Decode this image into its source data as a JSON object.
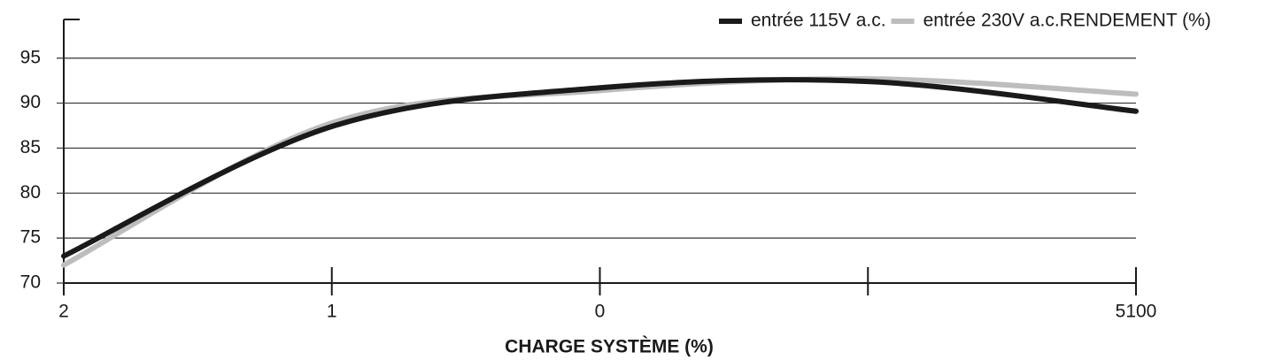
{
  "chart_data": {
    "type": "line",
    "y_label": "RENDEMENT (%)",
    "x_label": "CHARGE SYSTÈME (%)",
    "categories": [
      "2",
      "1",
      "0",
      null,
      "5100"
    ],
    "series": [
      {
        "name": "entrée 115V a.c.",
        "color": "#1a1a1a",
        "values": [
          73,
          87.4,
          91.7,
          92.4,
          89.1
        ]
      },
      {
        "name": "entrée 230V a.c.",
        "color": "#bdbdbd",
        "values": [
          72,
          87.8,
          91.4,
          92.7,
          91
        ]
      }
    ],
    "ylim": [
      70,
      99.3
    ],
    "yticks": [
      70,
      75,
      80,
      85,
      90,
      95
    ],
    "grid": true,
    "legend": "top-right"
  }
}
